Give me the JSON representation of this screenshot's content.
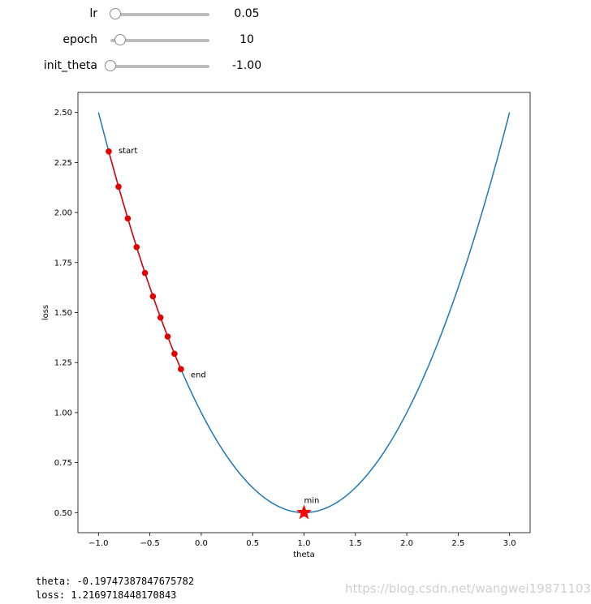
{
  "sliders": [
    {
      "label": "lr",
      "value_text": "0.05",
      "value": 0.05,
      "min": 0.0,
      "max": 1.0
    },
    {
      "label": "epoch",
      "value_text": "10",
      "value": 10,
      "min": 0,
      "max": 100
    },
    {
      "label": "init_theta",
      "value_text": "-1.00",
      "value": -1.0,
      "min": -1.0,
      "max": 3.0
    }
  ],
  "output": {
    "theta_line": "theta: -0.19747387847675782",
    "loss_line": "loss: 1.2169718448170843"
  },
  "watermark": "https://blog.csdn.net/wangwei19871103",
  "chart_data": {
    "type": "line",
    "xlabel": "theta",
    "ylabel": "loss",
    "xlim": [
      -1.2,
      3.2
    ],
    "ylim": [
      0.4,
      2.6
    ],
    "xticks": [
      -1.0,
      -0.5,
      0.0,
      0.5,
      1.0,
      1.5,
      2.0,
      2.5,
      3.0
    ],
    "xtick_labels": [
      "−1.0",
      "−0.5",
      "0.0",
      "0.5",
      "1.0",
      "1.5",
      "2.0",
      "2.5",
      "3.0"
    ],
    "yticks": [
      0.5,
      0.75,
      1.0,
      1.25,
      1.5,
      1.75,
      2.0,
      2.25,
      2.5
    ],
    "ytick_labels": [
      "0.50",
      "0.75",
      "1.00",
      "1.25",
      "1.50",
      "1.75",
      "2.00",
      "2.25",
      "2.50"
    ],
    "grid": false,
    "curve": {
      "function": "(theta - 1)^2 / 2 + 0.5",
      "x_range": [
        -1.0,
        3.0
      ],
      "color": "#1f77b4"
    },
    "path": {
      "color": "#e00000",
      "points": [
        {
          "x": -0.9,
          "y": 2.305
        },
        {
          "x": -0.805,
          "y": 2.129
        },
        {
          "x": -0.71475,
          "y": 1.97
        },
        {
          "x": -0.62901,
          "y": 1.827
        },
        {
          "x": -0.54756,
          "y": 1.698
        },
        {
          "x": -0.47018,
          "y": 1.581
        },
        {
          "x": -0.39667,
          "y": 1.475
        },
        {
          "x": -0.32684,
          "y": 1.38
        },
        {
          "x": -0.2605,
          "y": 1.294
        },
        {
          "x": -0.19747,
          "y": 1.217
        }
      ]
    },
    "annotations": [
      {
        "text": "start",
        "x": -0.9,
        "y": 2.305
      },
      {
        "text": "end",
        "x": -0.19747,
        "y": 1.217
      },
      {
        "text": "min",
        "x": 1.0,
        "y": 0.5
      }
    ],
    "min_marker": {
      "x": 1.0,
      "y": 0.5,
      "shape": "star",
      "color": "#ff0000"
    }
  }
}
